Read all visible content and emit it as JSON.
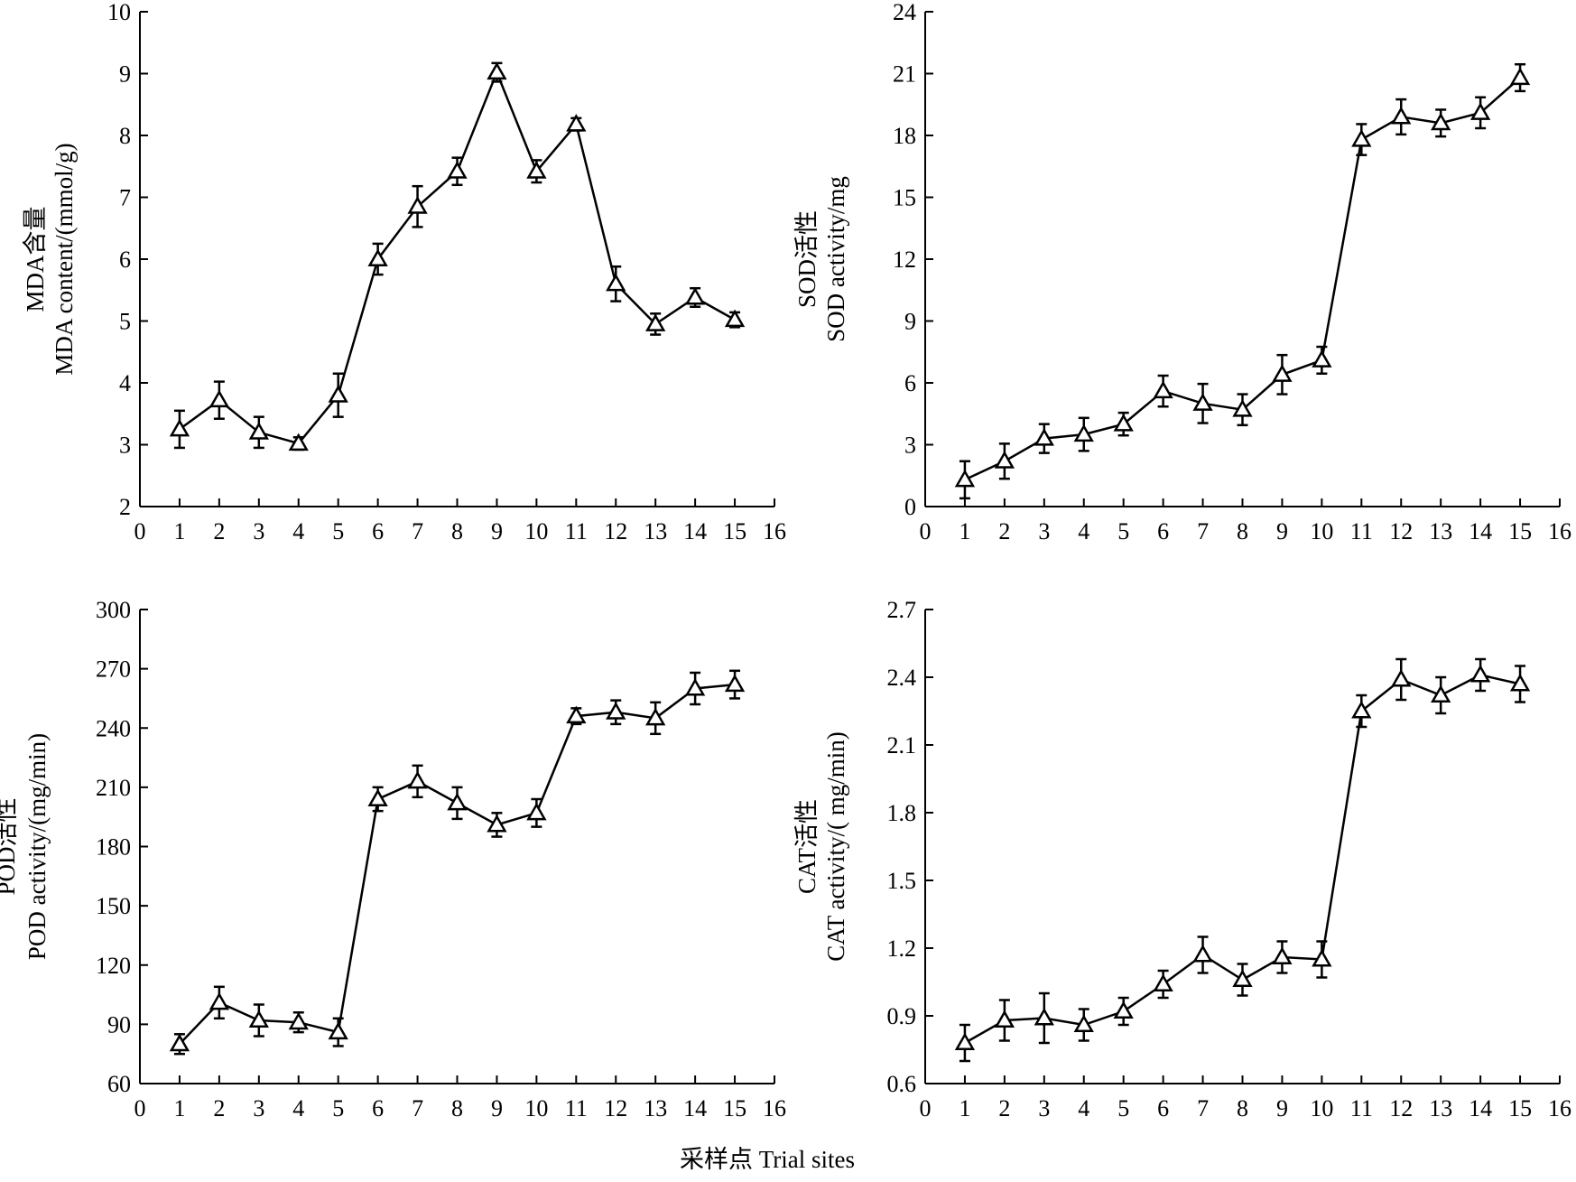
{
  "figure": {
    "shared_xlabel": "采样点 Trial sites"
  },
  "chart_data": [
    {
      "type": "line",
      "ylabel_line1": "MDA含量",
      "ylabel_line2": "MDA content/(mmol/g)",
      "xlim": [
        0,
        16
      ],
      "ylim": [
        2,
        10
      ],
      "xticks": [
        0,
        1,
        2,
        3,
        4,
        5,
        6,
        7,
        8,
        9,
        10,
        11,
        12,
        13,
        14,
        15,
        16
      ],
      "yticks": [
        2,
        3,
        4,
        5,
        6,
        7,
        8,
        9,
        10
      ],
      "marker": "open-triangle",
      "series": [
        {
          "x": [
            1,
            2,
            3,
            4,
            5,
            6,
            7,
            8,
            9,
            10,
            11,
            12,
            13,
            14,
            15
          ],
          "y": [
            3.25,
            3.72,
            3.2,
            3.02,
            3.8,
            6.0,
            6.85,
            7.42,
            9.02,
            7.42,
            8.18,
            5.6,
            4.95,
            5.38,
            5.02
          ],
          "err": [
            0.3,
            0.3,
            0.25,
            0.1,
            0.35,
            0.25,
            0.33,
            0.22,
            0.15,
            0.18,
            0.1,
            0.28,
            0.17,
            0.15,
            0.12
          ]
        }
      ]
    },
    {
      "type": "line",
      "ylabel_line1": "SOD活性",
      "ylabel_line2": "SOD activity/mg",
      "xlim": [
        0,
        16
      ],
      "ylim": [
        0,
        24
      ],
      "xticks": [
        0,
        1,
        2,
        3,
        4,
        5,
        6,
        7,
        8,
        9,
        10,
        11,
        12,
        13,
        14,
        15,
        16
      ],
      "yticks": [
        0,
        3,
        6,
        9,
        12,
        15,
        18,
        21,
        24
      ],
      "marker": "open-triangle",
      "series": [
        {
          "x": [
            1,
            2,
            3,
            4,
            5,
            6,
            7,
            8,
            9,
            10,
            11,
            12,
            13,
            14,
            15
          ],
          "y": [
            1.3,
            2.2,
            3.3,
            3.5,
            4.0,
            5.6,
            5.0,
            4.7,
            6.4,
            7.1,
            17.8,
            18.9,
            18.6,
            19.1,
            20.8
          ],
          "err": [
            0.9,
            0.85,
            0.7,
            0.8,
            0.55,
            0.75,
            0.95,
            0.75,
            0.95,
            0.65,
            0.75,
            0.85,
            0.65,
            0.75,
            0.65
          ]
        }
      ]
    },
    {
      "type": "line",
      "ylabel_line1": "POD活性",
      "ylabel_line2": "POD activity/(mg/min)",
      "xlim": [
        0,
        16
      ],
      "ylim": [
        60,
        300
      ],
      "xticks": [
        0,
        1,
        2,
        3,
        4,
        5,
        6,
        7,
        8,
        9,
        10,
        11,
        12,
        13,
        14,
        15,
        16
      ],
      "yticks": [
        60,
        90,
        120,
        150,
        180,
        210,
        240,
        270,
        300
      ],
      "marker": "open-triangle",
      "series": [
        {
          "x": [
            1,
            2,
            3,
            4,
            5,
            6,
            7,
            8,
            9,
            10,
            11,
            12,
            13,
            14,
            15
          ],
          "y": [
            80,
            101,
            92,
            91,
            86,
            204,
            213,
            202,
            191,
            197,
            246,
            248,
            245,
            260,
            262
          ],
          "err": [
            5,
            8,
            8,
            5,
            7,
            6,
            8,
            8,
            6,
            7,
            4,
            6,
            8,
            8,
            7
          ]
        }
      ]
    },
    {
      "type": "line",
      "ylabel_line1": "CAT活性",
      "ylabel_line2": "CAT activity/( mg/min)",
      "xlim": [
        0,
        16
      ],
      "ylim": [
        0.6,
        2.7
      ],
      "xticks": [
        0,
        1,
        2,
        3,
        4,
        5,
        6,
        7,
        8,
        9,
        10,
        11,
        12,
        13,
        14,
        15,
        16
      ],
      "yticks": [
        0.6,
        0.9,
        1.2,
        1.5,
        1.8,
        2.1,
        2.4,
        2.7
      ],
      "marker": "open-triangle",
      "series": [
        {
          "x": [
            1,
            2,
            3,
            4,
            5,
            6,
            7,
            8,
            9,
            10,
            11,
            12,
            13,
            14,
            15
          ],
          "y": [
            0.78,
            0.88,
            0.89,
            0.86,
            0.92,
            1.04,
            1.17,
            1.06,
            1.16,
            1.15,
            2.25,
            2.39,
            2.32,
            2.41,
            2.37
          ],
          "err": [
            0.08,
            0.09,
            0.11,
            0.07,
            0.06,
            0.06,
            0.08,
            0.07,
            0.07,
            0.08,
            0.07,
            0.09,
            0.08,
            0.07,
            0.08
          ]
        }
      ]
    }
  ]
}
